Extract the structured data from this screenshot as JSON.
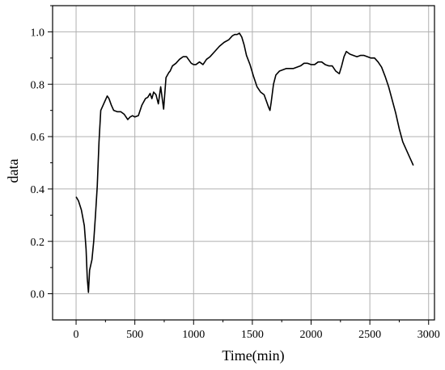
{
  "chart_data": {
    "type": "line",
    "xlabel": "Time(min)",
    "ylabel": "data",
    "xlim": [
      -200,
      3050
    ],
    "ylim": [
      -0.1,
      1.1
    ],
    "xticks": [
      0,
      500,
      1000,
      1500,
      2000,
      2500,
      3000
    ],
    "yticks": [
      0.0,
      0.2,
      0.4,
      0.6,
      0.8,
      1.0
    ],
    "xtick_labels": [
      "0",
      "500",
      "1000",
      "1500",
      "2000",
      "2500",
      "3000"
    ],
    "ytick_labels": [
      "0.0",
      "0.2",
      "0.4",
      "0.6",
      "0.8",
      "1.0"
    ],
    "grid": true,
    "line_color": "#000000",
    "grid_color": "#b0b0b0",
    "series": [
      {
        "x": [
          0,
          20,
          45,
          70,
          85,
          95,
          105,
          115,
          125,
          135,
          150,
          165,
          180,
          195,
          210,
          230,
          250,
          265,
          280,
          300,
          320,
          350,
          380,
          410,
          440,
          460,
          480,
          500,
          530,
          560,
          590,
          610,
          630,
          645,
          660,
          680,
          700,
          720,
          745,
          765,
          790,
          800,
          820,
          850,
          880,
          910,
          940,
          980,
          1000,
          1020,
          1050,
          1080,
          1110,
          1140,
          1180,
          1220,
          1260,
          1300,
          1330,
          1350,
          1370,
          1390,
          1410,
          1430,
          1450,
          1480,
          1510,
          1540,
          1570,
          1600,
          1620,
          1640,
          1650,
          1660,
          1680,
          1700,
          1730,
          1760,
          1790,
          1820,
          1850,
          1880,
          1910,
          1940,
          1970,
          2000,
          2030,
          2060,
          2090,
          2120,
          2150,
          2180,
          2210,
          2240,
          2260,
          2280,
          2300,
          2330,
          2360,
          2390,
          2420,
          2450,
          2480,
          2510,
          2540,
          2570,
          2600,
          2630,
          2660,
          2690,
          2720,
          2750,
          2780,
          2810,
          2840,
          2870
        ],
        "y": [
          0.37,
          0.355,
          0.32,
          0.26,
          0.17,
          0.06,
          0.005,
          0.09,
          0.11,
          0.13,
          0.2,
          0.3,
          0.41,
          0.58,
          0.7,
          0.72,
          0.74,
          0.755,
          0.745,
          0.72,
          0.7,
          0.695,
          0.695,
          0.685,
          0.665,
          0.675,
          0.68,
          0.675,
          0.68,
          0.72,
          0.745,
          0.75,
          0.765,
          0.745,
          0.77,
          0.76,
          0.725,
          0.79,
          0.705,
          0.825,
          0.845,
          0.85,
          0.87,
          0.88,
          0.895,
          0.905,
          0.905,
          0.88,
          0.875,
          0.875,
          0.885,
          0.875,
          0.895,
          0.905,
          0.925,
          0.945,
          0.96,
          0.97,
          0.985,
          0.99,
          0.99,
          0.995,
          0.98,
          0.95,
          0.91,
          0.875,
          0.83,
          0.79,
          0.77,
          0.76,
          0.735,
          0.71,
          0.7,
          0.73,
          0.8,
          0.835,
          0.85,
          0.855,
          0.86,
          0.86,
          0.86,
          0.865,
          0.87,
          0.88,
          0.88,
          0.875,
          0.875,
          0.885,
          0.885,
          0.875,
          0.87,
          0.87,
          0.85,
          0.84,
          0.87,
          0.905,
          0.925,
          0.915,
          0.91,
          0.905,
          0.91,
          0.91,
          0.905,
          0.9,
          0.9,
          0.885,
          0.865,
          0.83,
          0.79,
          0.74,
          0.69,
          0.63,
          0.58,
          0.55,
          0.52,
          0.49
        ]
      }
    ]
  }
}
